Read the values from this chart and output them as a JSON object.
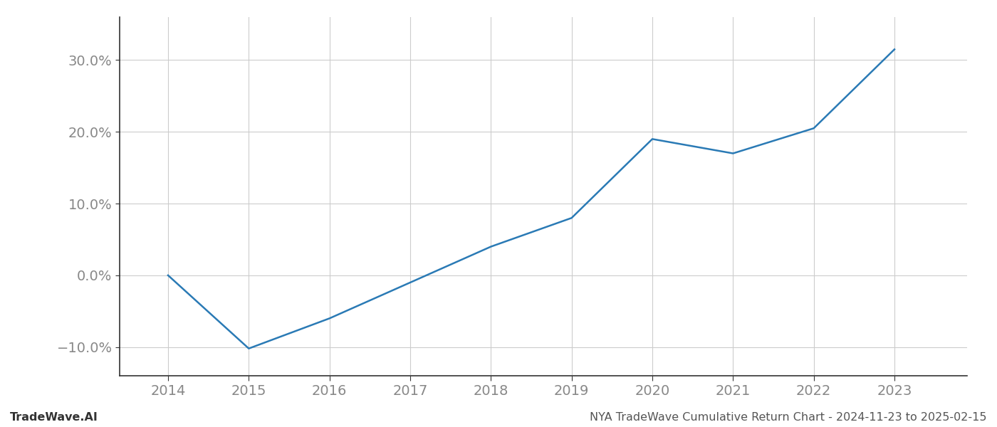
{
  "x_years": [
    2014,
    2015,
    2016,
    2017,
    2018,
    2019,
    2020,
    2021,
    2022,
    2023
  ],
  "y_values": [
    0.0,
    -10.2,
    -6.0,
    -1.0,
    4.0,
    8.0,
    19.0,
    17.0,
    20.5,
    31.5
  ],
  "line_color": "#2a7ab5",
  "line_width": 1.8,
  "background_color": "#ffffff",
  "grid_color": "#cccccc",
  "ytick_labels": [
    "−10.0%",
    "0.0%",
    "10.0%",
    "20.0%",
    "30.0%"
  ],
  "ytick_values": [
    -10.0,
    0.0,
    10.0,
    20.0,
    30.0
  ],
  "xticks": [
    2014,
    2015,
    2016,
    2017,
    2018,
    2019,
    2020,
    2021,
    2022,
    2023
  ],
  "ylim": [
    -14,
    36
  ],
  "xlim": [
    2013.4,
    2023.9
  ],
  "footer_left": "TradeWave.AI",
  "footer_right": "NYA TradeWave Cumulative Return Chart - 2024-11-23 to 2025-02-15",
  "tick_fontsize": 14,
  "footer_fontsize": 11.5
}
